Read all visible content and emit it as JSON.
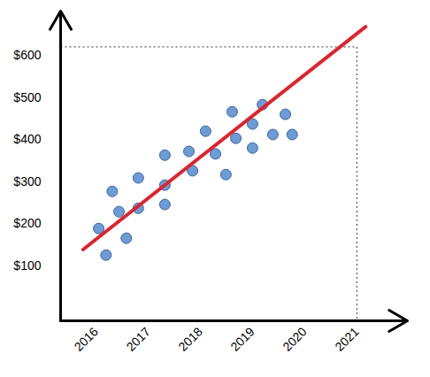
{
  "chart_data": {
    "type": "scatter",
    "x": [
      2016.05,
      2016.19,
      2016.31,
      2016.44,
      2016.58,
      2016.81,
      2016.81,
      2017.32,
      2017.32,
      2017.32,
      2017.78,
      2017.85,
      2018.1,
      2018.29,
      2018.49,
      2018.61,
      2018.68,
      2019.0,
      2019.0,
      2019.19,
      2019.39,
      2019.63,
      2019.76
    ],
    "values": [
      189,
      126,
      277,
      229,
      166,
      309,
      237,
      363,
      292,
      246,
      372,
      326,
      420,
      366,
      317,
      466,
      403,
      437,
      380,
      483,
      412,
      460,
      412
    ],
    "color": "#6f9bd4",
    "marker": "circle",
    "trend_line": {
      "x": [
        2015.75,
        2021.17
      ],
      "values": [
        139,
        668
      ],
      "color": "#d8262f",
      "line_style": "solid"
    },
    "reference_point": {
      "x": 2021,
      "y": 620,
      "line_style": "dotted"
    },
    "xlim": [
      2015.32,
      2021.97
    ],
    "ylim": [
      -30,
      705
    ],
    "xticks": [
      2016,
      2017,
      2018,
      2019,
      2020,
      2021
    ],
    "yticks": [
      {
        "value": 100,
        "label": "$100"
      },
      {
        "value": 200,
        "label": "$200"
      },
      {
        "value": 300,
        "label": "$300"
      },
      {
        "value": 400,
        "label": "$400"
      },
      {
        "value": 500,
        "label": "$500"
      },
      {
        "value": 600,
        "label": "$600"
      }
    ],
    "grid": false
  }
}
